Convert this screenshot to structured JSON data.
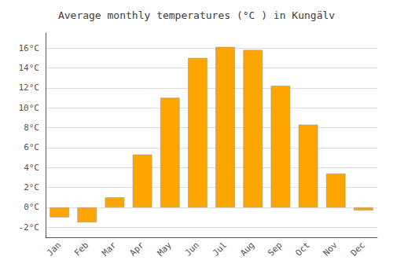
{
  "chart_data": {
    "type": "bar",
    "title": "Average monthly temperatures (°C ) in Kungälv",
    "categories": [
      "Jan",
      "Feb",
      "Mar",
      "Apr",
      "May",
      "Jun",
      "Jul",
      "Aug",
      "Sep",
      "Oct",
      "Nov",
      "Dec"
    ],
    "values": [
      -1.0,
      -1.5,
      1.0,
      5.3,
      11.0,
      15.0,
      16.1,
      15.8,
      12.2,
      8.3,
      3.4,
      -0.3
    ],
    "color": "#FFA500",
    "ylim": [
      -3,
      17.5
    ],
    "yticks": [
      {
        "value": -2,
        "label": "-2°C"
      },
      {
        "value": 0,
        "label": "0°C"
      },
      {
        "value": 2,
        "label": "2°C"
      },
      {
        "value": 4,
        "label": "4°C"
      },
      {
        "value": 6,
        "label": "6°C"
      },
      {
        "value": 8,
        "label": "8°C"
      },
      {
        "value": 10,
        "label": "10°C"
      },
      {
        "value": 12,
        "label": "12°C"
      },
      {
        "value": 14,
        "label": "14°C"
      },
      {
        "value": 16,
        "label": "16°C"
      }
    ],
    "grid": true
  }
}
